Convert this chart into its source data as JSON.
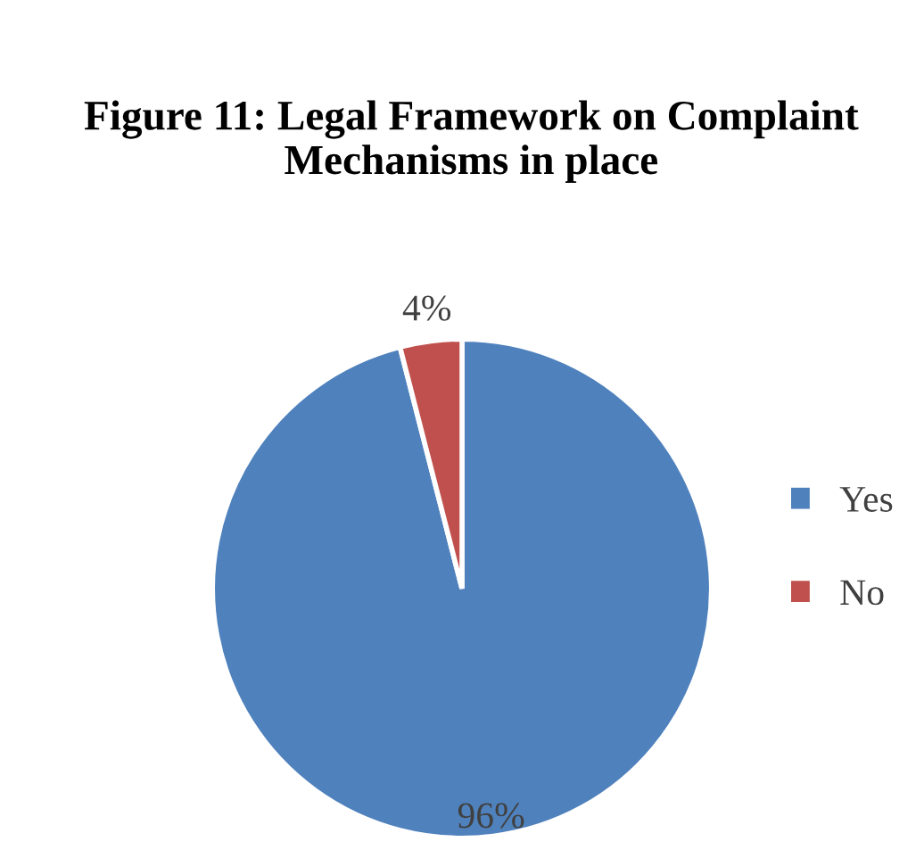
{
  "chart_data": {
    "type": "pie",
    "title": "Figure 11: Legal Framework on Complaint Mechanisms in place",
    "categories": [
      "Yes",
      "No"
    ],
    "values": [
      96,
      4
    ],
    "colors": [
      "#4f81bd",
      "#c0504d"
    ],
    "value_labels": [
      "96%",
      "4%"
    ],
    "legend": "right"
  }
}
